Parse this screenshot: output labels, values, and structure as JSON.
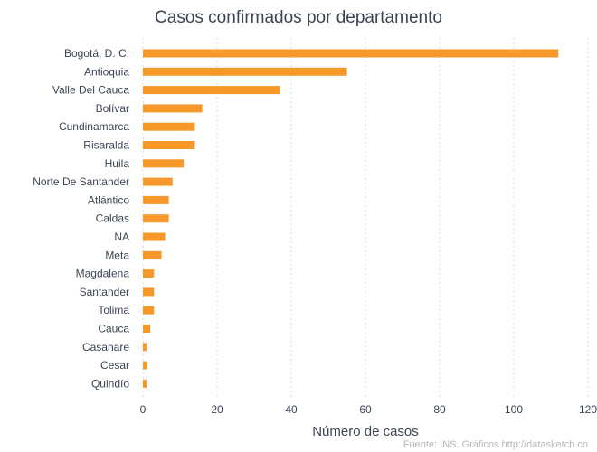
{
  "chart_data": {
    "type": "bar",
    "orientation": "horizontal",
    "title": "Casos confirmados por departamento",
    "xlabel": "Número de casos",
    "ylabel": "",
    "xlim": [
      0,
      120
    ],
    "xticks": [
      "0",
      "20",
      "40",
      "60",
      "80",
      "100",
      "120"
    ],
    "grid": true,
    "categories": [
      "Bogotá, D. C.",
      "Antioquia",
      "Valle Del Cauca",
      "Bolívar",
      "Cundinamarca",
      "Risaralda",
      "Huila",
      "Norte De Santander",
      "Atlántico",
      "Caldas",
      "NA",
      "Meta",
      "Magdalena",
      "Santander",
      "Tolima",
      "Cauca",
      "Casanare",
      "Cesar",
      "Quindío"
    ],
    "values": [
      112,
      55,
      37,
      16,
      14,
      14,
      11,
      8,
      7,
      7,
      6,
      5,
      3,
      3,
      3,
      2,
      1,
      1,
      1
    ],
    "bar_color": "#f7992a",
    "caption": "Fuente: INS. Gráficos http://datasketch.co"
  }
}
